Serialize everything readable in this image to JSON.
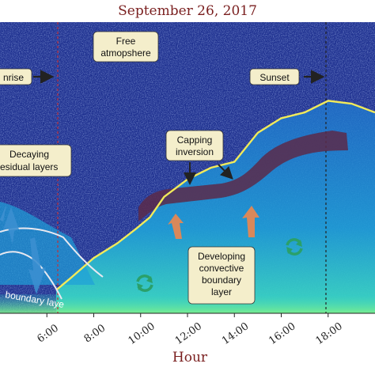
{
  "title": "September 26, 2017",
  "chart_data": {
    "type": "heatmap",
    "title": "September 26, 2017",
    "xlabel": "Hour",
    "ylabel": "",
    "x_ticks": [
      "6:00",
      "8:00",
      "10:00",
      "12:00",
      "14:00",
      "16:00",
      "18:00"
    ],
    "xlim_hours": [
      4.0,
      20.0
    ],
    "colors": {
      "background": "#1d2f8f",
      "noise_light": "#8fb6ff",
      "signal": "#1fa0d8",
      "signal_bright": "#3fe0c0",
      "boundary_line": "#f1ea5a",
      "capping_band": "#5a2a4a",
      "arrow_dark": "#222222",
      "arrow_orange": "#d9885a",
      "arrow_blue": "#3b8fd0",
      "recycle": "#2aa06a"
    },
    "boundary_layer_height": [
      {
        "hour": 6.4,
        "frac": 0.08
      },
      {
        "hour": 7.0,
        "frac": 0.12
      },
      {
        "hour": 8.0,
        "frac": 0.19
      },
      {
        "hour": 9.0,
        "frac": 0.24
      },
      {
        "hour": 9.8,
        "frac": 0.29
      },
      {
        "hour": 10.4,
        "frac": 0.33
      },
      {
        "hour": 11.0,
        "frac": 0.4
      },
      {
        "hour": 12.0,
        "frac": 0.46
      },
      {
        "hour": 13.0,
        "frac": 0.5
      },
      {
        "hour": 14.0,
        "frac": 0.52
      },
      {
        "hour": 15.0,
        "frac": 0.62
      },
      {
        "hour": 16.0,
        "frac": 0.67
      },
      {
        "hour": 17.0,
        "frac": 0.69
      },
      {
        "hour": 18.0,
        "frac": 0.73
      },
      {
        "hour": 19.0,
        "frac": 0.72
      },
      {
        "hour": 20.0,
        "frac": 0.69
      }
    ],
    "annotations": {
      "free_atmosphere": [
        "Free",
        "atmopshere"
      ],
      "sunrise": "nrise",
      "sunset": "Sunset",
      "decaying": [
        "Decaying",
        "esidual layers"
      ],
      "capping": [
        "Capping",
        "inversion"
      ],
      "developing": [
        "Developing",
        "convective",
        "boundary",
        "layer"
      ],
      "boundary_layer_text": "boundary laye"
    }
  }
}
